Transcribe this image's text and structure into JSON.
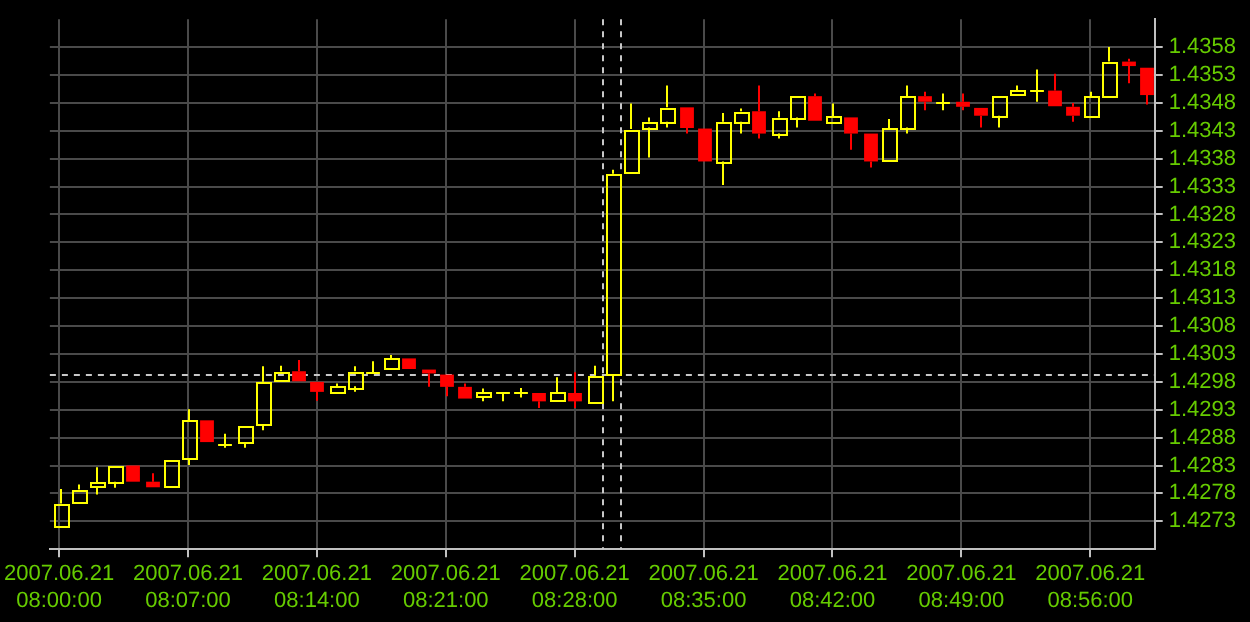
{
  "chart_data": {
    "type": "candlestick",
    "x": [
      "2007-06-21T08:00",
      "2007-06-21T08:01",
      "2007-06-21T08:02",
      "2007-06-21T08:03",
      "2007-06-21T08:04",
      "2007-06-21T08:05",
      "2007-06-21T08:06",
      "2007-06-21T08:07",
      "2007-06-21T08:08",
      "2007-06-21T08:09",
      "2007-06-21T08:10",
      "2007-06-21T08:11",
      "2007-06-21T08:12",
      "2007-06-21T08:13",
      "2007-06-21T08:14",
      "2007-06-21T08:15",
      "2007-06-21T08:16",
      "2007-06-21T08:17",
      "2007-06-21T08:18",
      "2007-06-21T08:19",
      "2007-06-21T08:20",
      "2007-06-21T08:21",
      "2007-06-21T08:22",
      "2007-06-21T08:23",
      "2007-06-21T08:24",
      "2007-06-21T08:25",
      "2007-06-21T08:26",
      "2007-06-21T08:27",
      "2007-06-21T08:28",
      "2007-06-21T08:29",
      "2007-06-21T08:30",
      "2007-06-21T08:31",
      "2007-06-21T08:32",
      "2007-06-21T08:33",
      "2007-06-21T08:34",
      "2007-06-21T08:35",
      "2007-06-21T08:36",
      "2007-06-21T08:37",
      "2007-06-21T08:38",
      "2007-06-21T08:39",
      "2007-06-21T08:40",
      "2007-06-21T08:41",
      "2007-06-21T08:42",
      "2007-06-21T08:43",
      "2007-06-21T08:44",
      "2007-06-21T08:45",
      "2007-06-21T08:46",
      "2007-06-21T08:47",
      "2007-06-21T08:48",
      "2007-06-21T08:49",
      "2007-06-21T08:50",
      "2007-06-21T08:51",
      "2007-06-21T08:52",
      "2007-06-21T08:53",
      "2007-06-21T08:54",
      "2007-06-21T08:55",
      "2007-06-21T08:56",
      "2007-06-21T08:57",
      "2007-06-21T08:58",
      "2007-06-21T08:59"
    ],
    "ohlc": [
      [
        1.42724,
        1.42788,
        1.42724,
        1.42762
      ],
      [
        1.42764,
        1.42796,
        1.42764,
        1.42787
      ],
      [
        1.42791,
        1.42827,
        1.42778,
        1.42799
      ],
      [
        1.42801,
        1.4283,
        1.4279,
        1.4283
      ],
      [
        1.4283,
        1.4283,
        1.42801,
        1.42801
      ],
      [
        1.42801,
        1.42816,
        1.42791,
        1.42791
      ],
      [
        1.42791,
        1.42839,
        1.42791,
        1.42839
      ],
      [
        1.42842,
        1.42931,
        1.42831,
        1.42911
      ],
      [
        1.42911,
        1.42911,
        1.42872,
        1.42872
      ],
      [
        1.4287,
        1.42887,
        1.42862,
        1.4287
      ],
      [
        1.42872,
        1.42901,
        1.42862,
        1.42901
      ],
      [
        1.42904,
        1.43008,
        1.42893,
        1.4298
      ],
      [
        1.42983,
        1.43009,
        1.42983,
        1.42999
      ],
      [
        1.42999,
        1.43019,
        1.42981,
        1.42981
      ],
      [
        1.4298,
        1.4298,
        1.42946,
        1.42962
      ],
      [
        1.42962,
        1.42977,
        1.42962,
        1.42971
      ],
      [
        1.42972,
        1.43008,
        1.42962,
        1.42999
      ],
      [
        1.42999,
        1.43017,
        1.42994,
        1.42999
      ],
      [
        1.43003,
        1.43028,
        1.43003,
        1.43022
      ],
      [
        1.43022,
        1.43022,
        1.43003,
        1.43003
      ],
      [
        1.43002,
        1.43002,
        1.42971,
        1.42995
      ],
      [
        1.42993,
        1.42993,
        1.42954,
        1.42971
      ],
      [
        1.42971,
        1.42977,
        1.4295,
        1.4295
      ],
      [
        1.42954,
        1.42968,
        1.42945,
        1.4296
      ],
      [
        1.4296,
        1.4296,
        1.42945,
        1.4296
      ],
      [
        1.4296,
        1.42969,
        1.42952,
        1.4296
      ],
      [
        1.4296,
        1.4296,
        1.42933,
        1.42945
      ],
      [
        1.42945,
        1.42988,
        1.42945,
        1.4296
      ],
      [
        1.4296,
        1.42997,
        1.42933,
        1.42945
      ],
      [
        1.42945,
        1.43009,
        1.42945,
        1.42992
      ],
      [
        1.42994,
        1.4336,
        1.42945,
        1.43353
      ],
      [
        1.43356,
        1.43479,
        1.43356,
        1.43433
      ],
      [
        1.43436,
        1.43454,
        1.43382,
        1.43446
      ],
      [
        1.43446,
        1.43511,
        1.43436,
        1.43472
      ],
      [
        1.43472,
        1.43472,
        1.43425,
        1.43435
      ],
      [
        1.43434,
        1.43434,
        1.43375,
        1.43375
      ],
      [
        1.43375,
        1.43462,
        1.43333,
        1.43446
      ],
      [
        1.43446,
        1.4347,
        1.43425,
        1.43465
      ],
      [
        1.43465,
        1.43511,
        1.43416,
        1.43425
      ],
      [
        1.43425,
        1.43465,
        1.43416,
        1.43454
      ],
      [
        1.43454,
        1.43492,
        1.43436,
        1.43492
      ],
      [
        1.43492,
        1.43497,
        1.43448,
        1.43448
      ],
      [
        1.43446,
        1.43479,
        1.43446,
        1.43456
      ],
      [
        1.43454,
        1.43454,
        1.43396,
        1.43425
      ],
      [
        1.43425,
        1.43425,
        1.43364,
        1.43375
      ],
      [
        1.43375,
        1.43451,
        1.43375,
        1.43434
      ],
      [
        1.43436,
        1.43511,
        1.43425,
        1.43492
      ],
      [
        1.43492,
        1.435,
        1.43467,
        1.43482
      ],
      [
        1.43482,
        1.43497,
        1.43467,
        1.43482
      ],
      [
        1.43482,
        1.43497,
        1.43467,
        1.43473
      ],
      [
        1.43471,
        1.43471,
        1.43436,
        1.43457
      ],
      [
        1.43457,
        1.43492,
        1.43436,
        1.43492
      ],
      [
        1.43494,
        1.43511,
        1.43494,
        1.43502
      ],
      [
        1.43502,
        1.4354,
        1.43482,
        1.43502
      ],
      [
        1.43502,
        1.43532,
        1.43474,
        1.43474
      ],
      [
        1.43473,
        1.4348,
        1.43446,
        1.43457
      ],
      [
        1.43457,
        1.435,
        1.43457,
        1.43492
      ],
      [
        1.43494,
        1.4358,
        1.43494,
        1.43554
      ],
      [
        1.43554,
        1.43559,
        1.43515,
        1.43546
      ],
      [
        1.43543,
        1.43543,
        1.43477,
        1.43494
      ]
    ],
    "colors": [
      "#ffff00",
      "#ffff00",
      "#ffff00",
      "#ffff00",
      "#ff0000",
      "#ff0000",
      "#ffff00",
      "#ffff00",
      "#ff0000",
      "#ffff00",
      "#ffff00",
      "#ffff00",
      "#ffff00",
      "#ff0000",
      "#ff0000",
      "#ffff00",
      "#ffff00",
      "#ffff00",
      "#ffff00",
      "#ff0000",
      "#ff0000",
      "#ff0000",
      "#ff0000",
      "#ffff00",
      "#ffff00",
      "#ffff00",
      "#ff0000",
      "#ffff00",
      "#ff0000",
      "#ffff00",
      "#ffff00",
      "#ffff00",
      "#ffff00",
      "#ffff00",
      "#ff0000",
      "#ff0000",
      "#ffff00",
      "#ffff00",
      "#ff0000",
      "#ffff00",
      "#ffff00",
      "#ff0000",
      "#ffff00",
      "#ff0000",
      "#ff0000",
      "#ffff00",
      "#ffff00",
      "#ff0000",
      "#ffff00",
      "#ff0000",
      "#ff0000",
      "#ffff00",
      "#ffff00",
      "#ffff00",
      "#ff0000",
      "#ff0000",
      "#ffff00",
      "#ffff00",
      "#ff0000",
      "#ff0000"
    ],
    "xlim": [
      "2007-06-21T07:59:30",
      "2007-06-21T08:59:30"
    ],
    "xticks": [
      {
        "value": "2007-06-21T08:00",
        "label": "2007.06.21 08:00:00"
      },
      {
        "value": "2007-06-21T08:07",
        "label": "2007.06.21 08:07:00"
      },
      {
        "value": "2007-06-21T08:14",
        "label": "2007.06.21 08:14:00"
      },
      {
        "value": "2007-06-21T08:21",
        "label": "2007.06.21 08:21:00"
      },
      {
        "value": "2007-06-21T08:28",
        "label": "2007.06.21 08:28:00"
      },
      {
        "value": "2007-06-21T08:35",
        "label": "2007.06.21 08:35:00"
      },
      {
        "value": "2007-06-21T08:42",
        "label": "2007.06.21 08:42:00"
      },
      {
        "value": "2007-06-21T08:49",
        "label": "2007.06.21 08:49:00"
      },
      {
        "value": "2007-06-21T08:56",
        "label": "2007.06.21 08:56:00"
      }
    ],
    "ylim": [
      1.4268,
      1.4363
    ],
    "yticks": [
      1.4273,
      1.4278,
      1.4283,
      1.4288,
      1.4293,
      1.4298,
      1.4303,
      1.4308,
      1.4313,
      1.4318,
      1.4323,
      1.4328,
      1.4333,
      1.4338,
      1.4343,
      1.4348,
      1.4353,
      1.4358
    ],
    "grid": true,
    "ref_lines": [
      {
        "axis": "y",
        "value": 1.42994,
        "color": "#c8c8c8",
        "line_style": "dashed"
      },
      {
        "axis": "x",
        "value": "2007-06-21T08:29:30",
        "color": "#c8c8c8",
        "line_style": "dashed"
      },
      {
        "axis": "x",
        "value": "2007-06-21T08:30:30",
        "color": "#c8c8c8",
        "line_style": "dashed"
      }
    ]
  }
}
